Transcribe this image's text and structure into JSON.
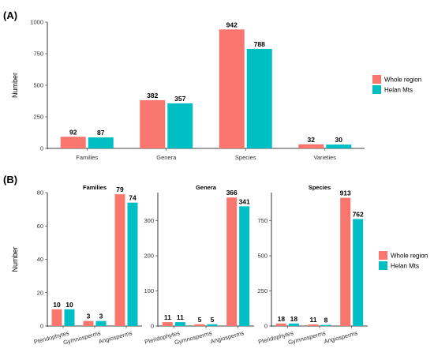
{
  "chart_data": [
    {
      "type": "bar",
      "panel_label": "(A)",
      "title": "",
      "xlabel": "",
      "ylabel": "Number",
      "ylim": [
        0,
        1000
      ],
      "yticks": [
        0,
        250,
        500,
        750,
        1000
      ],
      "categories": [
        "Families",
        "Genera",
        "Species",
        "Varieties"
      ],
      "series": [
        {
          "name": "Whole region",
          "color": "#F8766D",
          "values": [
            92,
            382,
            942,
            32
          ]
        },
        {
          "name": "Helan Mts",
          "color": "#00BFC4",
          "values": [
            87,
            357,
            788,
            30
          ]
        }
      ],
      "legend": "right"
    },
    {
      "type": "bar",
      "panel_label": "(B)",
      "title": "Families",
      "xlabel": "",
      "ylabel": "Number",
      "ylim": [
        0,
        80
      ],
      "yticks": [
        0,
        20,
        40,
        60,
        80
      ],
      "categories": [
        "Pteridophytes",
        "Gymnosperms",
        "Angiosperms"
      ],
      "series": [
        {
          "name": "Whole region",
          "color": "#F8766D",
          "values": [
            10,
            3,
            79
          ]
        },
        {
          "name": "Helan Mts",
          "color": "#00BFC4",
          "values": [
            10,
            3,
            74
          ]
        }
      ],
      "legend": "right"
    },
    {
      "type": "bar",
      "title": "Genera",
      "xlabel": "",
      "ylabel": "",
      "ylim": [
        0,
        380
      ],
      "yticks": [
        0,
        100,
        200,
        300
      ],
      "categories": [
        "Pteridophytes",
        "Gymnosperms",
        "Angiosperms"
      ],
      "series": [
        {
          "name": "Whole region",
          "color": "#F8766D",
          "values": [
            11,
            5,
            366
          ]
        },
        {
          "name": "Helan Mts",
          "color": "#00BFC4",
          "values": [
            11,
            5,
            341
          ]
        }
      ]
    },
    {
      "type": "bar",
      "title": "Species",
      "xlabel": "",
      "ylabel": "",
      "ylim": [
        0,
        950
      ],
      "yticks": [
        0,
        250,
        500,
        750
      ],
      "categories": [
        "Pteridophytes",
        "Gymnosperms",
        "Angiosperms"
      ],
      "series": [
        {
          "name": "Whole region",
          "color": "#F8766D",
          "values": [
            18,
            11,
            913
          ]
        },
        {
          "name": "Helan Mts",
          "color": "#00BFC4",
          "values": [
            18,
            8,
            762
          ]
        }
      ]
    }
  ]
}
